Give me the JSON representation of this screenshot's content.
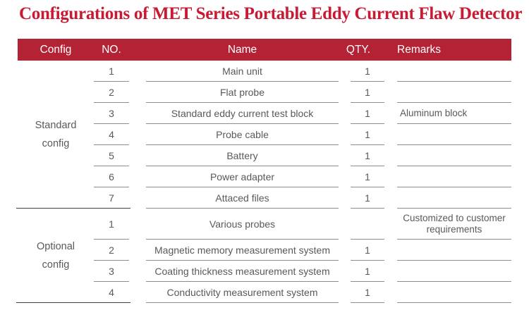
{
  "title": "Configurations of MET Series Portable Eddy Current Flaw Detector",
  "colors": {
    "title_red": "#C81A32",
    "header_red": "#B32235",
    "text_gray": "#58595B",
    "line_gray": "#8D8D8D",
    "divider_dark": "#3F3F3F"
  },
  "table": {
    "headers": [
      "Config",
      "NO.",
      "Name",
      "QTY.",
      "Remarks"
    ],
    "sections": [
      {
        "config_label": "Standard config",
        "config_label_lines": [
          "Standard",
          "config"
        ],
        "rows": [
          {
            "no": "1",
            "name": "Main unit",
            "qty": "1",
            "remarks": ""
          },
          {
            "no": "2",
            "name": "Flat probe",
            "qty": "1",
            "remarks": ""
          },
          {
            "no": "3",
            "name": "Standard eddy current test block",
            "qty": "1",
            "remarks": "Aluminum block"
          },
          {
            "no": "4",
            "name": "Probe cable",
            "qty": "1",
            "remarks": ""
          },
          {
            "no": "5",
            "name": "Battery",
            "qty": "1",
            "remarks": ""
          },
          {
            "no": "6",
            "name": "Power adapter",
            "qty": "1",
            "remarks": ""
          },
          {
            "no": "7",
            "name": "Attaced files",
            "qty": "1",
            "remarks": ""
          }
        ]
      },
      {
        "config_label": "Optional config",
        "config_label_lines": [
          "Optional",
          "config"
        ],
        "rows": [
          {
            "no": "1",
            "name": "Various probes",
            "qty": "",
            "remarks": "Customized to customer requirements",
            "tall": true
          },
          {
            "no": "2",
            "name": "Magnetic memory measurement system",
            "qty": "1",
            "remarks": ""
          },
          {
            "no": "3",
            "name": "Coating thickness measurement system",
            "qty": "1",
            "remarks": ""
          },
          {
            "no": "4",
            "name": "Conductivity measurement system",
            "qty": "1",
            "remarks": ""
          }
        ]
      }
    ]
  }
}
